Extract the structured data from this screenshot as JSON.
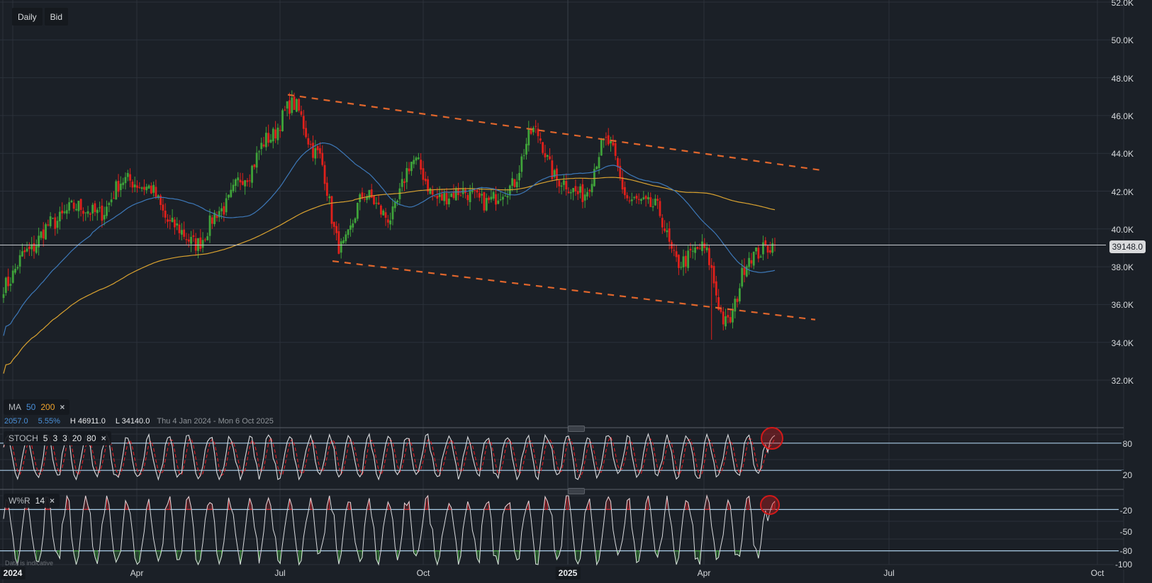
{
  "toolbar": {
    "interval_label": "Daily",
    "price_type_label": "Bid"
  },
  "colors": {
    "background": "#1b2027",
    "grid": "#2b313a",
    "up": "#3fa33a",
    "down": "#e0201b",
    "ma50": "#3d78b8",
    "ma200": "#d9a230",
    "channel": "#e0662c",
    "price_line": "#c8ccd0",
    "band_line": "#a9cbe6",
    "osc_main": "#d8dadd",
    "osc_signal": "#d41f26",
    "wr_over": "#d41f26",
    "wr_under": "#3fa33a",
    "highlight_circle": "#d31a1a"
  },
  "price_panel": {
    "current_price": "39148.0",
    "current_price_value": 39148,
    "y_axis_labels": [
      "52.0K",
      "50.0K",
      "48.0K",
      "46.0K",
      "44.0K",
      "42.0K",
      "40.0K",
      "38.0K",
      "36.0K",
      "34.0K",
      "32.0K"
    ],
    "y_axis_values": [
      52000,
      50000,
      48000,
      46000,
      44000,
      42000,
      40000,
      38000,
      36000,
      34000,
      32000
    ]
  },
  "ma_legend": {
    "label": "MA",
    "period_fast": "50",
    "period_slow": "200",
    "close_icon": "×"
  },
  "stats": {
    "change": "2057.0",
    "change_pct": "5.55%",
    "high": "H 46911.0",
    "low": "L 34140.0",
    "range": "Thu 4 Jan 2024 - Mon 6 Oct 2025"
  },
  "stoch_legend": {
    "label": "STOCH",
    "params": [
      "5",
      "3",
      "3",
      "20",
      "80"
    ],
    "close_icon": "×",
    "axis_labels": [
      "80",
      "20"
    ]
  },
  "wr_legend": {
    "label": "W%R",
    "period": "14",
    "close_icon": "×",
    "axis_labels": [
      "-20",
      "-50",
      "-80",
      "-100"
    ]
  },
  "x_axis": {
    "labels": [
      {
        "text": "2024",
        "year": true
      },
      {
        "text": "Apr",
        "year": false
      },
      {
        "text": "Jul",
        "year": false
      },
      {
        "text": "Oct",
        "year": false
      },
      {
        "text": "2025",
        "year": true
      },
      {
        "text": "Apr",
        "year": false
      },
      {
        "text": "Jul",
        "year": false
      },
      {
        "text": "Oct",
        "year": false
      }
    ]
  },
  "footer_note": "Data is indicative",
  "chart_data": [
    {
      "type": "candlestick",
      "title": "Daily Bid price chart",
      "x_range": [
        "Thu 4 Jan 2024",
        "Mon 6 Oct 2025"
      ],
      "ylim": [
        32000,
        52000
      ],
      "y_ticks": [
        32000,
        34000,
        36000,
        38000,
        40000,
        42000,
        44000,
        46000,
        48000,
        50000,
        52000
      ],
      "x_ticks": [
        "2024",
        "Apr",
        "Jul",
        "Oct",
        "2025",
        "Apr",
        "Jul",
        "Oct"
      ],
      "grid": true,
      "current_price": 39148.0,
      "high": 46911.0,
      "low": 34140.0,
      "change": 2057.0,
      "change_pct": 5.55,
      "approx_close_path": [
        {
          "date": "2024-01",
          "close": 37000
        },
        {
          "date": "2024-01-mid",
          "close": 38800
        },
        {
          "date": "2024-02",
          "close": 40300
        },
        {
          "date": "2024-02-mid",
          "close": 41200
        },
        {
          "date": "2024-03",
          "close": 40800
        },
        {
          "date": "2024-03-mid",
          "close": 42600
        },
        {
          "date": "2024-04",
          "close": 42200
        },
        {
          "date": "2024-04-mid",
          "close": 40200
        },
        {
          "date": "2024-05",
          "close": 39200
        },
        {
          "date": "2024-05-mid",
          "close": 41000
        },
        {
          "date": "2024-06",
          "close": 42800
        },
        {
          "date": "2024-06-mid",
          "close": 44800
        },
        {
          "date": "2024-07",
          "close": 46600
        },
        {
          "date": "2024-07-mid",
          "close": 44000
        },
        {
          "date": "2024-08",
          "close": 39000
        },
        {
          "date": "2024-08-mid",
          "close": 41800
        },
        {
          "date": "2024-09",
          "close": 40600
        },
        {
          "date": "2024-09-mid",
          "close": 43600
        },
        {
          "date": "2024-10",
          "close": 41600
        },
        {
          "date": "2024-10-mid",
          "close": 42000
        },
        {
          "date": "2024-11",
          "close": 41400
        },
        {
          "date": "2024-11-mid",
          "close": 42200
        },
        {
          "date": "2024-12",
          "close": 45200
        },
        {
          "date": "2024-12-mid",
          "close": 42600
        },
        {
          "date": "2025-01",
          "close": 41800
        },
        {
          "date": "2025-01-mid",
          "close": 44600
        },
        {
          "date": "2025-02",
          "close": 41500
        },
        {
          "date": "2025-02-mid",
          "close": 41200
        },
        {
          "date": "2025-03",
          "close": 38200
        },
        {
          "date": "2025-03-mid",
          "close": 39000
        },
        {
          "date": "2025-04",
          "close": 35000
        },
        {
          "date": "2025-04-mid",
          "close": 38600
        },
        {
          "date": "2025-04-end",
          "close": 39148
        }
      ],
      "overlays": [
        {
          "name": "MA 50",
          "color": "#3d78b8"
        },
        {
          "name": "MA 200",
          "color": "#d9a230"
        },
        {
          "name": "Descending channel upper",
          "style": "dashed",
          "from": {
            "date": "2024-07",
            "price": 47100
          },
          "to": {
            "date": "2025-06",
            "price": 43100
          }
        },
        {
          "name": "Descending channel lower",
          "style": "dashed",
          "from": {
            "date": "2024-08",
            "price": 38300
          },
          "to": {
            "date": "2025-06",
            "price": 35200
          }
        },
        {
          "name": "Current price line",
          "value": 39148.0
        }
      ]
    },
    {
      "type": "line",
      "title": "STOCH 5 3 3 20 80",
      "ylim": [
        0,
        100
      ],
      "bands": [
        20,
        80
      ],
      "series": [
        {
          "name": "%K",
          "style": "solid"
        },
        {
          "name": "%D",
          "style": "dashed"
        }
      ],
      "annotation": "Latest %K reading above 80 (overbought) — circled"
    },
    {
      "type": "line",
      "title": "W%R 14",
      "ylim": [
        -100,
        0
      ],
      "y_ticks": [
        -20,
        -50,
        -80,
        -100
      ],
      "bands": [
        -20,
        -80
      ],
      "annotation": "Latest reading above -20 (overbought) — circled"
    }
  ]
}
